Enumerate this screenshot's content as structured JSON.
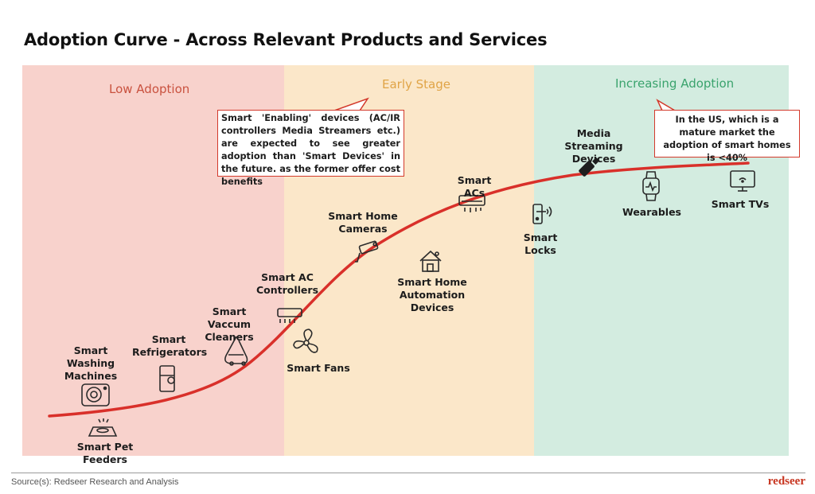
{
  "title": "Adoption Curve - Across Relevant Products and Services",
  "zones": {
    "low": "Low Adoption",
    "early": "Early Stage",
    "increasing": "Increasing Adoption"
  },
  "products": {
    "smart_washing_machines": "Smart Washing\nMachines",
    "smart_pet_feeders": "Smart Pet Feeders",
    "smart_refrigerators": "Smart\nRefrigerators",
    "smart_vaccum_cleaners": "Smart Vaccum\nCleaners",
    "smart_ac_controllers": "Smart AC\nControllers",
    "smart_fans": "Smart Fans",
    "smart_home_cameras": "Smart Home\nCameras",
    "smart_home_automation": "Smart Home\nAutomation Devices",
    "smart_acs": "Smart ACs",
    "smart_locks": "Smart Locks",
    "media_streaming_devices": "Media Streaming\nDevices",
    "wearables": "Wearables",
    "smart_tvs": "Smart TVs"
  },
  "callouts": {
    "enabling_devices": "Smart 'Enabling' devices (AC/IR controllers Media Streamers etc.) are expected to see greater adoption than 'Smart Devices' in the future. as the former offer cost benefits",
    "us_market": "In the US, which is a mature market the adoption of smart homes is <40%"
  },
  "footer": {
    "source": "Source(s): Redseer Research and Analysis",
    "brand": "redseer"
  },
  "colors": {
    "curve": "#d9302a",
    "low_zone": "#f8d2cc",
    "early_zone": "#fbe7c9",
    "increasing_zone": "#d3ece0"
  },
  "icons": [
    "washing-machine-icon",
    "pet-feeder-icon",
    "refrigerator-icon",
    "vacuum-cleaner-icon",
    "ac-controller-icon",
    "fan-icon",
    "camera-icon",
    "home-automation-icon",
    "ac-icon",
    "lock-icon",
    "usb-stick-icon",
    "watch-icon",
    "tv-icon"
  ]
}
